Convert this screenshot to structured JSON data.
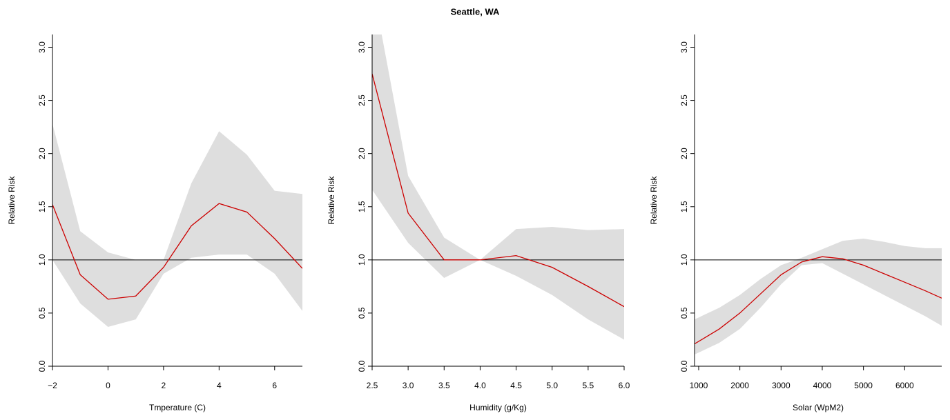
{
  "title": "Seattle, WA",
  "chart_data": [
    {
      "type": "line",
      "xlabel": "Tmperature (C)",
      "ylabel": "Relative Risk",
      "x": [
        -2,
        -1,
        0,
        1,
        2,
        3,
        4,
        5,
        6,
        7
      ],
      "values": [
        1.52,
        0.86,
        0.63,
        0.66,
        0.93,
        1.32,
        1.53,
        1.45,
        1.2,
        0.92
      ],
      "lower": [
        1.0,
        0.59,
        0.37,
        0.44,
        0.87,
        1.02,
        1.05,
        1.05,
        0.87,
        0.52
      ],
      "upper": [
        2.28,
        1.27,
        1.07,
        1.0,
        1.0,
        1.72,
        2.21,
        1.99,
        1.65,
        1.62
      ],
      "color": "#cc0000",
      "band_color": "#dedede",
      "reference_line": 1,
      "xlim": [
        -2,
        7
      ],
      "xticks": [
        {
          "value": -2,
          "label": "−2"
        },
        0,
        2,
        4,
        6
      ],
      "ylim": [
        0,
        3.12
      ],
      "yticks": [
        {
          "value": 0,
          "label": "0.0"
        },
        0.5,
        {
          "value": 1,
          "label": "1.0"
        },
        1.5,
        {
          "value": 2,
          "label": "2.0"
        },
        2.5,
        {
          "value": 3,
          "label": "3.0"
        }
      ]
    },
    {
      "type": "line",
      "xlabel": "Humidity (g/Kg)",
      "ylabel": "Relative Risk",
      "x": [
        2.5,
        3.0,
        3.5,
        4.0,
        4.5,
        5.0,
        5.5,
        6.0
      ],
      "values": [
        2.75,
        1.44,
        1.0,
        1.0,
        1.04,
        0.93,
        0.75,
        0.56
      ],
      "lower": [
        1.66,
        1.16,
        0.83,
        1.0,
        0.85,
        0.67,
        0.44,
        0.25
      ],
      "upper": [
        3.6,
        1.79,
        1.21,
        1.0,
        1.29,
        1.31,
        1.28,
        1.29
      ],
      "color": "#cc0000",
      "band_color": "#dedede",
      "reference_line": 1,
      "xlim": [
        2.5,
        6.0
      ],
      "xticks": [
        2.5,
        {
          "value": 3,
          "label": "3.0"
        },
        3.5,
        {
          "value": 4,
          "label": "4.0"
        },
        4.5,
        {
          "value": 5,
          "label": "5.0"
        },
        5.5,
        {
          "value": 6,
          "label": "6.0"
        }
      ],
      "ylim": [
        0,
        3.12
      ],
      "yticks": [
        {
          "value": 0,
          "label": "0.0"
        },
        0.5,
        {
          "value": 1,
          "label": "1.0"
        },
        1.5,
        {
          "value": 2,
          "label": "2.0"
        },
        2.5,
        {
          "value": 3,
          "label": "3.0"
        }
      ]
    },
    {
      "type": "line",
      "xlabel": "Solar (WpM2)",
      "ylabel": "Relative Risk",
      "x": [
        900,
        1500,
        2000,
        2500,
        3000,
        3500,
        4000,
        4500,
        5000,
        5500,
        6000,
        6500,
        6900
      ],
      "values": [
        0.21,
        0.35,
        0.5,
        0.68,
        0.86,
        0.98,
        1.03,
        1.01,
        0.95,
        0.87,
        0.79,
        0.71,
        0.64
      ],
      "lower": [
        0.11,
        0.22,
        0.35,
        0.55,
        0.77,
        0.95,
        0.97,
        0.87,
        0.77,
        0.67,
        0.57,
        0.47,
        0.38
      ],
      "upper": [
        0.44,
        0.55,
        0.67,
        0.82,
        0.95,
        1.02,
        1.1,
        1.18,
        1.2,
        1.17,
        1.13,
        1.11,
        1.11
      ],
      "color": "#cc0000",
      "band_color": "#dedede",
      "reference_line": 1,
      "xlim": [
        900,
        6900
      ],
      "xticks": [
        1000,
        2000,
        3000,
        4000,
        5000,
        6000
      ],
      "ylim": [
        0,
        3.12
      ],
      "yticks": [
        {
          "value": 0,
          "label": "0.0"
        },
        0.5,
        {
          "value": 1,
          "label": "1.0"
        },
        1.5,
        {
          "value": 2,
          "label": "2.0"
        },
        2.5,
        {
          "value": 3,
          "label": "3.0"
        }
      ]
    }
  ]
}
